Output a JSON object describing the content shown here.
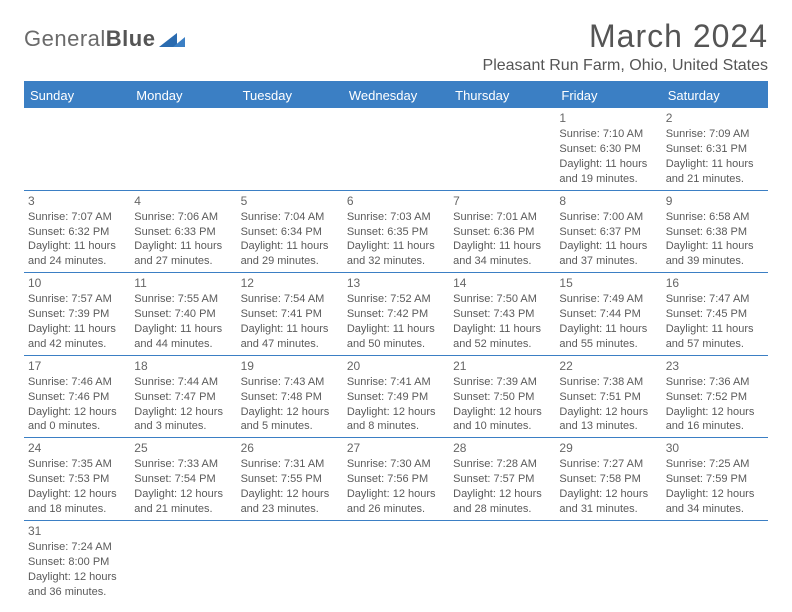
{
  "logo": {
    "part1": "General",
    "part2": "Blue"
  },
  "title": "March 2024",
  "location": "Pleasant Run Farm, Ohio, United States",
  "colors": {
    "accent": "#3b7fc4",
    "text": "#555555",
    "bg": "#ffffff"
  },
  "day_headers": [
    "Sunday",
    "Monday",
    "Tuesday",
    "Wednesday",
    "Thursday",
    "Friday",
    "Saturday"
  ],
  "weeks": [
    [
      null,
      null,
      null,
      null,
      null,
      {
        "day": "1",
        "sunrise": "Sunrise: 7:10 AM",
        "sunset": "Sunset: 6:30 PM",
        "daylight": "Daylight: 11 hours and 19 minutes."
      },
      {
        "day": "2",
        "sunrise": "Sunrise: 7:09 AM",
        "sunset": "Sunset: 6:31 PM",
        "daylight": "Daylight: 11 hours and 21 minutes."
      }
    ],
    [
      {
        "day": "3",
        "sunrise": "Sunrise: 7:07 AM",
        "sunset": "Sunset: 6:32 PM",
        "daylight": "Daylight: 11 hours and 24 minutes."
      },
      {
        "day": "4",
        "sunrise": "Sunrise: 7:06 AM",
        "sunset": "Sunset: 6:33 PM",
        "daylight": "Daylight: 11 hours and 27 minutes."
      },
      {
        "day": "5",
        "sunrise": "Sunrise: 7:04 AM",
        "sunset": "Sunset: 6:34 PM",
        "daylight": "Daylight: 11 hours and 29 minutes."
      },
      {
        "day": "6",
        "sunrise": "Sunrise: 7:03 AM",
        "sunset": "Sunset: 6:35 PM",
        "daylight": "Daylight: 11 hours and 32 minutes."
      },
      {
        "day": "7",
        "sunrise": "Sunrise: 7:01 AM",
        "sunset": "Sunset: 6:36 PM",
        "daylight": "Daylight: 11 hours and 34 minutes."
      },
      {
        "day": "8",
        "sunrise": "Sunrise: 7:00 AM",
        "sunset": "Sunset: 6:37 PM",
        "daylight": "Daylight: 11 hours and 37 minutes."
      },
      {
        "day": "9",
        "sunrise": "Sunrise: 6:58 AM",
        "sunset": "Sunset: 6:38 PM",
        "daylight": "Daylight: 11 hours and 39 minutes."
      }
    ],
    [
      {
        "day": "10",
        "sunrise": "Sunrise: 7:57 AM",
        "sunset": "Sunset: 7:39 PM",
        "daylight": "Daylight: 11 hours and 42 minutes."
      },
      {
        "day": "11",
        "sunrise": "Sunrise: 7:55 AM",
        "sunset": "Sunset: 7:40 PM",
        "daylight": "Daylight: 11 hours and 44 minutes."
      },
      {
        "day": "12",
        "sunrise": "Sunrise: 7:54 AM",
        "sunset": "Sunset: 7:41 PM",
        "daylight": "Daylight: 11 hours and 47 minutes."
      },
      {
        "day": "13",
        "sunrise": "Sunrise: 7:52 AM",
        "sunset": "Sunset: 7:42 PM",
        "daylight": "Daylight: 11 hours and 50 minutes."
      },
      {
        "day": "14",
        "sunrise": "Sunrise: 7:50 AM",
        "sunset": "Sunset: 7:43 PM",
        "daylight": "Daylight: 11 hours and 52 minutes."
      },
      {
        "day": "15",
        "sunrise": "Sunrise: 7:49 AM",
        "sunset": "Sunset: 7:44 PM",
        "daylight": "Daylight: 11 hours and 55 minutes."
      },
      {
        "day": "16",
        "sunrise": "Sunrise: 7:47 AM",
        "sunset": "Sunset: 7:45 PM",
        "daylight": "Daylight: 11 hours and 57 minutes."
      }
    ],
    [
      {
        "day": "17",
        "sunrise": "Sunrise: 7:46 AM",
        "sunset": "Sunset: 7:46 PM",
        "daylight": "Daylight: 12 hours and 0 minutes."
      },
      {
        "day": "18",
        "sunrise": "Sunrise: 7:44 AM",
        "sunset": "Sunset: 7:47 PM",
        "daylight": "Daylight: 12 hours and 3 minutes."
      },
      {
        "day": "19",
        "sunrise": "Sunrise: 7:43 AM",
        "sunset": "Sunset: 7:48 PM",
        "daylight": "Daylight: 12 hours and 5 minutes."
      },
      {
        "day": "20",
        "sunrise": "Sunrise: 7:41 AM",
        "sunset": "Sunset: 7:49 PM",
        "daylight": "Daylight: 12 hours and 8 minutes."
      },
      {
        "day": "21",
        "sunrise": "Sunrise: 7:39 AM",
        "sunset": "Sunset: 7:50 PM",
        "daylight": "Daylight: 12 hours and 10 minutes."
      },
      {
        "day": "22",
        "sunrise": "Sunrise: 7:38 AM",
        "sunset": "Sunset: 7:51 PM",
        "daylight": "Daylight: 12 hours and 13 minutes."
      },
      {
        "day": "23",
        "sunrise": "Sunrise: 7:36 AM",
        "sunset": "Sunset: 7:52 PM",
        "daylight": "Daylight: 12 hours and 16 minutes."
      }
    ],
    [
      {
        "day": "24",
        "sunrise": "Sunrise: 7:35 AM",
        "sunset": "Sunset: 7:53 PM",
        "daylight": "Daylight: 12 hours and 18 minutes."
      },
      {
        "day": "25",
        "sunrise": "Sunrise: 7:33 AM",
        "sunset": "Sunset: 7:54 PM",
        "daylight": "Daylight: 12 hours and 21 minutes."
      },
      {
        "day": "26",
        "sunrise": "Sunrise: 7:31 AM",
        "sunset": "Sunset: 7:55 PM",
        "daylight": "Daylight: 12 hours and 23 minutes."
      },
      {
        "day": "27",
        "sunrise": "Sunrise: 7:30 AM",
        "sunset": "Sunset: 7:56 PM",
        "daylight": "Daylight: 12 hours and 26 minutes."
      },
      {
        "day": "28",
        "sunrise": "Sunrise: 7:28 AM",
        "sunset": "Sunset: 7:57 PM",
        "daylight": "Daylight: 12 hours and 28 minutes."
      },
      {
        "day": "29",
        "sunrise": "Sunrise: 7:27 AM",
        "sunset": "Sunset: 7:58 PM",
        "daylight": "Daylight: 12 hours and 31 minutes."
      },
      {
        "day": "30",
        "sunrise": "Sunrise: 7:25 AM",
        "sunset": "Sunset: 7:59 PM",
        "daylight": "Daylight: 12 hours and 34 minutes."
      }
    ],
    [
      {
        "day": "31",
        "sunrise": "Sunrise: 7:24 AM",
        "sunset": "Sunset: 8:00 PM",
        "daylight": "Daylight: 12 hours and 36 minutes."
      },
      null,
      null,
      null,
      null,
      null,
      null
    ]
  ]
}
